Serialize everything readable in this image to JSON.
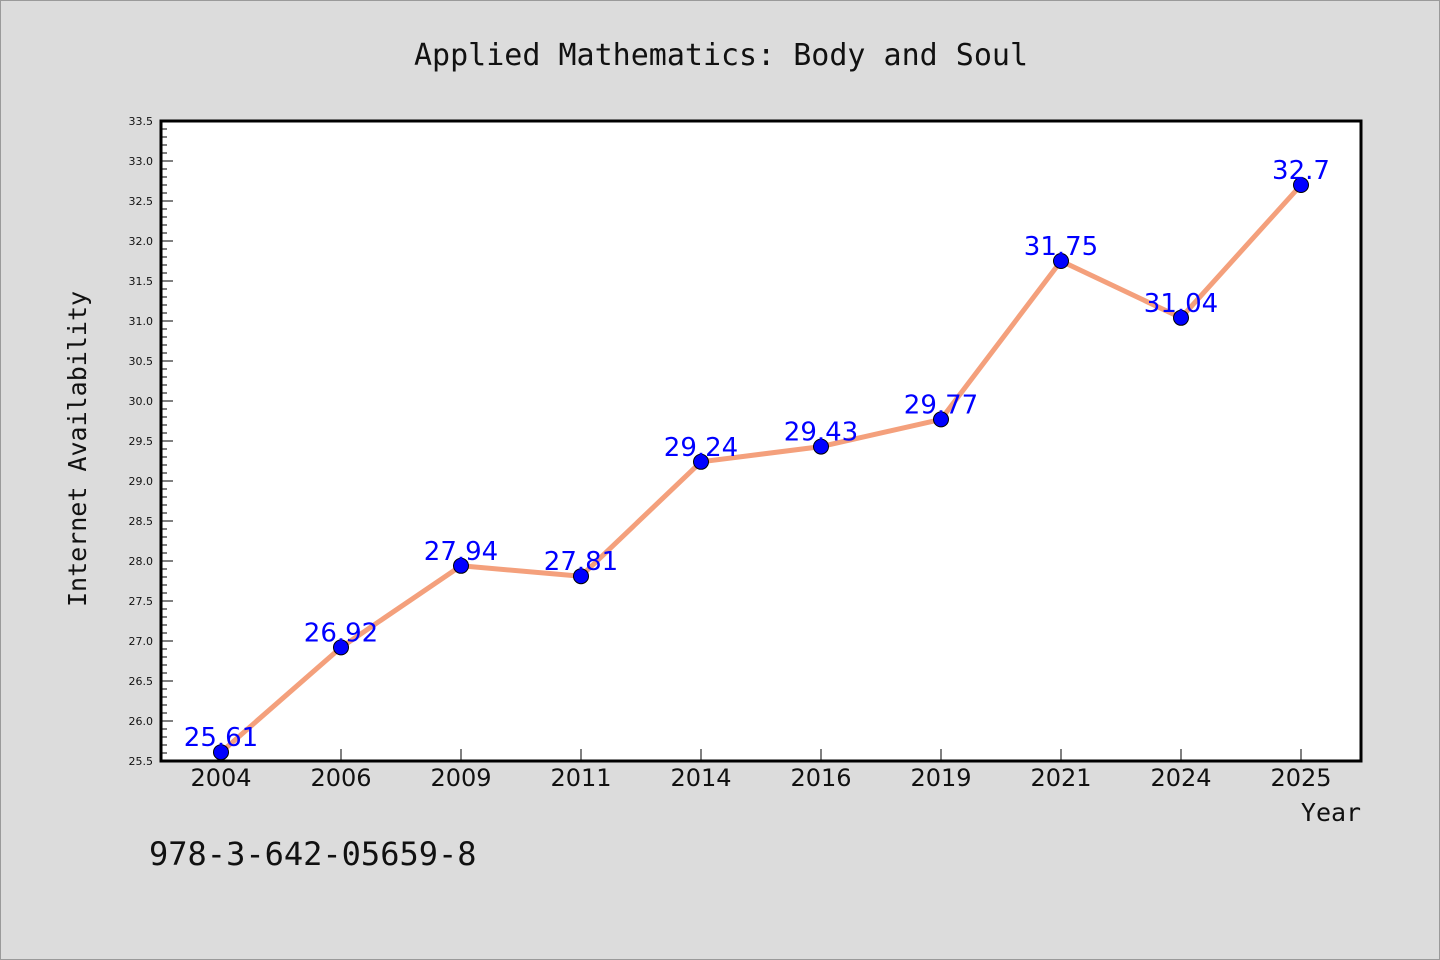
{
  "chart_data": {
    "type": "line",
    "title": "Applied Mathematics: Body and Soul",
    "xlabel": "Year",
    "ylabel": "Internet Availability",
    "categories": [
      "2004",
      "2006",
      "2009",
      "2011",
      "2014",
      "2016",
      "2019",
      "2021",
      "2024",
      "2025"
    ],
    "series": [
      {
        "values": [
          25.61,
          26.92,
          27.94,
          27.81,
          29.24,
          29.43,
          29.77,
          31.75,
          31.04,
          32.7
        ],
        "data_labels": [
          "25.61",
          "26.92",
          "27.94",
          "27.81",
          "29.24",
          "29.43",
          "29.77",
          "31.75",
          "31.04",
          "32.7"
        ],
        "line_color": "#f4a07c",
        "marker_color": "#0000ff"
      }
    ],
    "ylim": [
      25.5,
      33.5
    ],
    "yticks": [
      "25.5",
      "26.0",
      "26.5",
      "27.0",
      "27.5",
      "28.0",
      "28.5",
      "29.0",
      "29.5",
      "30.0",
      "30.5",
      "31.0",
      "31.5",
      "32.0",
      "32.5",
      "33.0",
      "33.5"
    ],
    "grid": false,
    "legend": "none",
    "label_color": "#0000ff",
    "background": "#dcdcdc",
    "plot_background": "#ffffff"
  },
  "footer": {
    "isbn": "978-3-642-05659-8"
  }
}
